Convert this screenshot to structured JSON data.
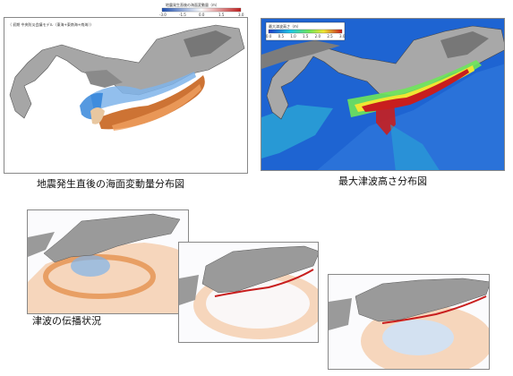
{
  "panels": {
    "initial": {
      "caption": "地震発生直後の海面変動量分布図",
      "colorbar_title": "地震発生直後の海面変動量（m）",
      "colorbar_ticks": [
        "-3.0",
        "-1.5",
        "0.0",
        "1.5",
        "3.0"
      ],
      "header_text": "（ 初期 中央防災会議モデル（東海+東南海+南海）)"
    },
    "max": {
      "caption": "最大津波高さ分布図",
      "colorbar_title": "最大津波高さ（m）",
      "colorbar_ticks": [
        "0.0",
        "0.5",
        "1.0",
        "1.5",
        "2.0",
        "2.5",
        "3.0"
      ]
    },
    "propagation": {
      "caption": "津波の伝播状況"
    }
  },
  "colors": {
    "uplift": "#c8641e",
    "subsidence": "#2a7fd8",
    "land": "#9a9a9a",
    "max_sea": "#1e64d2",
    "max_high": "#c81e1e"
  }
}
